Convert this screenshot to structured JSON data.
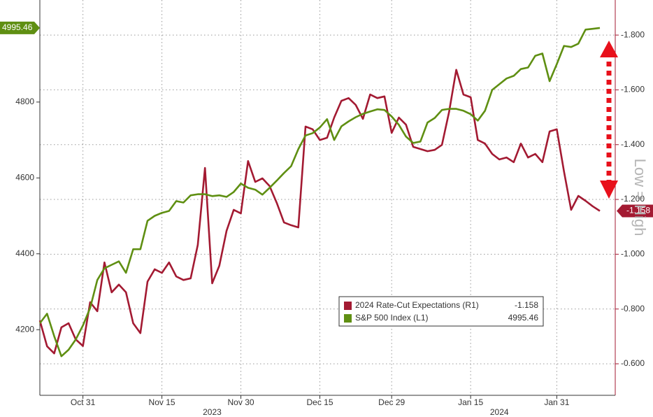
{
  "chart_data": {
    "type": "line",
    "categories": [
      null,
      null,
      null,
      null,
      null,
      null,
      "Oct 31",
      null,
      null,
      null,
      null,
      null,
      null,
      null,
      null,
      null,
      null,
      "Nov 15",
      null,
      null,
      null,
      null,
      null,
      null,
      null,
      null,
      null,
      null,
      "Nov 30",
      null,
      null,
      null,
      null,
      null,
      null,
      null,
      null,
      null,
      null,
      "Dec 15",
      null,
      null,
      null,
      null,
      null,
      null,
      null,
      null,
      null,
      "Dec 29",
      null,
      null,
      null,
      null,
      null,
      null,
      null,
      null,
      null,
      null,
      "Jan 15",
      null,
      null,
      null,
      null,
      null,
      null,
      null,
      null,
      null,
      null,
      null,
      "Jan 31",
      null,
      null,
      null,
      null,
      null,
      null
    ],
    "year_labels": [
      "2023",
      "2024"
    ],
    "series": [
      {
        "name": "2024 Rate-Cut Expectations (R1)",
        "color": "#a31a32",
        "axis": "y2",
        "last_label": "-1.158",
        "values": [
          -0.758,
          -0.664,
          -0.638,
          -0.733,
          -0.748,
          -0.689,
          -0.665,
          -0.825,
          -0.792,
          -0.97,
          -0.861,
          -0.889,
          -0.861,
          -0.748,
          -0.712,
          -0.9,
          -0.945,
          -0.932,
          -0.97,
          -0.919,
          -0.906,
          -0.912,
          -1.034,
          -1.315,
          -0.894,
          -0.958,
          -1.085,
          -1.162,
          -1.149,
          -1.34,
          -1.264,
          -1.277,
          -1.249,
          -1.187,
          -1.116,
          -1.106,
          -1.098,
          -1.466,
          -1.456,
          -1.417,
          -1.425,
          -1.499,
          -1.56,
          -1.57,
          -1.545,
          -1.494,
          -1.583,
          -1.57,
          -1.576,
          -1.443,
          -1.499,
          -1.473,
          -1.392,
          -1.384,
          -1.376,
          -1.381,
          -1.399,
          -1.519,
          -1.673,
          -1.583,
          -1.573,
          -1.417,
          -1.404,
          -1.366,
          -1.346,
          -1.353,
          -1.336,
          -1.404,
          -1.353,
          -1.366,
          -1.336,
          -1.448,
          -1.456,
          -1.302,
          -1.162,
          -1.213,
          -1.195,
          -1.175,
          -1.158
        ]
      },
      {
        "name": "S&P 500 Index (L1)",
        "color": "#5f8f12",
        "last_label": "4995.46",
        "values": [
          4217,
          4242,
          4183,
          4130,
          4147,
          4174,
          4211,
          4257,
          4331,
          4362,
          4371,
          4380,
          4350,
          4412,
          4412,
          4487,
          4500,
          4508,
          4513,
          4539,
          4535,
          4554,
          4557,
          4557,
          4552,
          4554,
          4550,
          4563,
          4585,
          4574,
          4569,
          4556,
          4574,
          4593,
          4613,
          4631,
          4676,
          4712,
          4718,
          4733,
          4755,
          4700,
          4736,
          4749,
          4760,
          4769,
          4775,
          4781,
          4779,
          4762,
          4740,
          4709,
          4692,
          4696,
          4746,
          4758,
          4779,
          4782,
          4782,
          4777,
          4768,
          4751,
          4777,
          4832,
          4847,
          4862,
          4869,
          4887,
          4891,
          4922,
          4928,
          4855,
          4900,
          4948,
          4945,
          4954,
          4991,
          4993,
          4995.46
        ]
      }
    ],
    "ylim": [
      4027,
      5069
    ],
    "yticks": [
      4200,
      4400,
      4600,
      4800
    ],
    "y2lim": [
      -0.485,
      -1.928
    ],
    "y2ticks": [
      {
        "value": -0.6,
        "label": "-0.600"
      },
      {
        "value": -0.8,
        "label": "-0.800"
      },
      {
        "value": -1.0,
        "label": "-1.000"
      },
      {
        "value": -1.2,
        "label": "-1.200"
      },
      {
        "value": -1.4,
        "label": "-1.400"
      },
      {
        "value": -1.6,
        "label": "-1.600"
      },
      {
        "value": -1.8,
        "label": "-1.800"
      }
    ],
    "grid": true,
    "annotation": "Low = High"
  }
}
